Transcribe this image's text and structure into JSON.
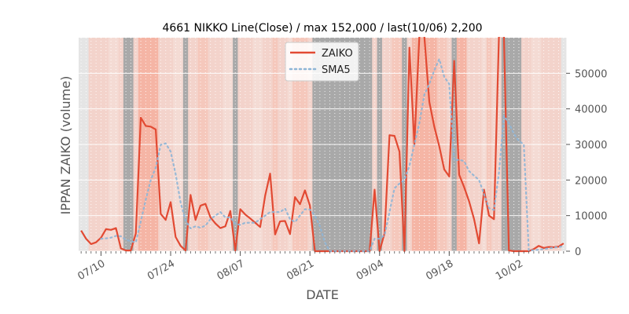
{
  "chart_data": {
    "type": "line",
    "title": "4661 NIKKO Line(Close) / max 152,000 / last(10/06) 2,200",
    "xlabel": "DATE",
    "ylabel": "IPPAN ZAIKO (volume)",
    "ylim": [
      0,
      60000
    ],
    "yticks": [
      0,
      10000,
      20000,
      30000,
      40000,
      50000
    ],
    "ytick_labels": [
      "0",
      "10000",
      "20000",
      "30000",
      "40000",
      "50000"
    ],
    "xtick_labels": [
      "07/10",
      "07/24",
      "08/07",
      "08/21",
      "09/04",
      "09/18",
      "10/02"
    ],
    "xtick_index": [
      4,
      18,
      32,
      46,
      60,
      74,
      88
    ],
    "grid": true,
    "legend_position": "upper-center",
    "series": [
      {
        "name": "ZAIKO",
        "color": "#e24a33",
        "style": "solid",
        "values": [
          5800,
          3500,
          2000,
          2500,
          3800,
          6200,
          6000,
          6500,
          800,
          200,
          200,
          5000,
          37500,
          35200,
          35000,
          34200,
          10500,
          8800,
          13800,
          4000,
          1500,
          200,
          15800,
          8800,
          12800,
          13300,
          9500,
          7800,
          6500,
          7000,
          11300,
          200,
          11800,
          10300,
          9200,
          8000,
          6800,
          15600,
          21800,
          4700,
          8400,
          8500,
          4800,
          15200,
          13200,
          17100,
          12800,
          0,
          0,
          0,
          0,
          0,
          0,
          0,
          0,
          0,
          0,
          0,
          0,
          17300,
          0,
          5000,
          32600,
          32400,
          28000,
          0,
          57200,
          30000,
          62000,
          62000,
          42000,
          35000,
          29500,
          23000,
          21000,
          53500,
          21500,
          18000,
          14000,
          9000,
          2200,
          17300,
          10000,
          9000,
          62000,
          62000,
          200,
          0,
          0,
          0,
          0,
          600,
          1500,
          900,
          1200,
          1100,
          1300,
          2200
        ],
        "gaps_at_top": true
      },
      {
        "name": "SMA5",
        "color": "#8eb5d6",
        "style": "dotted",
        "values": [
          null,
          null,
          null,
          null,
          3500,
          3600,
          3800,
          4300,
          4200,
          3200,
          2800,
          2500,
          8400,
          14500,
          20000,
          23500,
          29900,
          30300,
          28000,
          21700,
          13700,
          8600,
          6400,
          7000,
          6600,
          7200,
          9000,
          10000,
          11000,
          9500,
          9500,
          7700,
          7400,
          8000,
          8000,
          8000,
          9000,
          10000,
          11000,
          11000,
          11000,
          12000,
          9000,
          8200,
          10000,
          11800,
          11700,
          10000,
          7000,
          2500,
          0,
          0,
          0,
          0,
          0,
          0,
          0,
          0,
          0,
          3500,
          3500,
          4500,
          11000,
          17700,
          19000,
          20000,
          24000,
          30000,
          36000,
          44000,
          47000,
          50800,
          54000,
          49000,
          47000,
          25500,
          25700,
          25300,
          22500,
          21200,
          20000,
          16000,
          12100,
          11600,
          22000,
          38000,
          36000,
          33000,
          31000,
          30000,
          200,
          300,
          400,
          600,
          800,
          1000,
          1200,
          1400
        ]
      }
    ],
    "background_bands": [
      "#e5e5e5",
      "#e5e5e5",
      "#f3d3cb",
      "#f3d3cb",
      "#f3d3cb",
      "#f3d3cb",
      "#f4dbd4",
      "#f4dbd4",
      "#f3d3cb",
      "#a9a9a9",
      "#a9a9a9",
      "#f3d3cb",
      "#f5b5a5",
      "#f5b5a5",
      "#f5b5a5",
      "#f5b5a5",
      "#f3d3cb",
      "#f3d3cb",
      "#f3d3cb",
      "#f4dbd4",
      "#f4dbd4",
      "#a9a9a9",
      "#f3d3cb",
      "#f3d3cb",
      "#f5c8bc",
      "#f5c8bc",
      "#f3d3cb",
      "#f3d3cb",
      "#f3d3cb",
      "#f4dbd4",
      "#f4dbd4",
      "#a9a9a9",
      "#f3d3cb",
      "#f3d3cb",
      "#f3d3cb",
      "#f4dbd4",
      "#f4dbd4",
      "#f3d3cb",
      "#f3d3cb",
      "#f5c8bc",
      "#f3d3cb",
      "#f3d3cb",
      "#f4dbd4",
      "#f5c8bc",
      "#f5c8bc",
      "#f5c8bc",
      "#f3d3cb",
      "#a9a9a9",
      "#a9a9a9",
      "#a9a9a9",
      "#a9a9a9",
      "#a9a9a9",
      "#a9a9a9",
      "#a9a9a9",
      "#a9a9a9",
      "#a9a9a9",
      "#a9a9a9",
      "#a9a9a9",
      "#a9a9a9",
      "#f3d3cb",
      "#a9a9a9",
      "#f3d3cb",
      "#f3d3cb",
      "#f5c8bc",
      "#f5c8bc",
      "#a9a9a9",
      "#f3d3cb",
      "#f5b5a5",
      "#f5b5a5",
      "#f5b5a5",
      "#f5b5a5",
      "#f5b5a5",
      "#f5c8bc",
      "#f5c8bc",
      "#f3d3cb",
      "#a9a9a9",
      "#f5b5a5",
      "#f5b5a5",
      "#f3d3cb",
      "#f3d3cb",
      "#f3d3cb",
      "#f4dbd4",
      "#f5c8bc",
      "#f3d3cb",
      "#f3d3cb",
      "#a9a9a9",
      "#a9a9a9",
      "#a9a9a9",
      "#a9a9a9",
      "#f3d3cb",
      "#f3d3cb",
      "#f4dbd4",
      "#f4dbd4",
      "#f3d3cb",
      "#f3d3cb",
      "#f3d3cb",
      "#f3d3cb",
      "#e5e5e5"
    ]
  }
}
